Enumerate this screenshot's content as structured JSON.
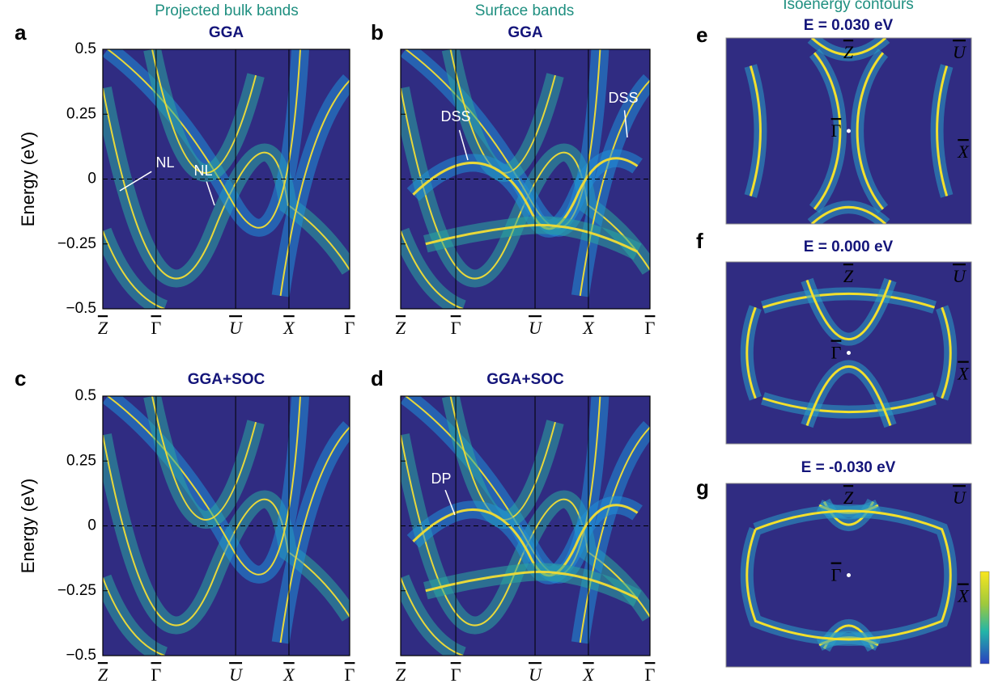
{
  "column_headers": [
    "Projected bulk bands",
    "Surface bands",
    "Isoenergy contours"
  ],
  "y_axis": {
    "label": "Energy (eV)",
    "ylim": [
      -0.5,
      0.5
    ],
    "ticks": [
      0.5,
      0.25,
      0,
      {
        "value": -0.25,
        "label": "−0.25"
      },
      {
        "value": -0.5,
        "label": "−0.5"
      }
    ]
  },
  "k_path": [
    "Z",
    "Γ",
    "U",
    "X",
    "Γ"
  ],
  "band_panels": [
    {
      "label": "a",
      "title": "GGA",
      "annotations": [
        "NL",
        "NL"
      ]
    },
    {
      "label": "b",
      "title": "GGA",
      "annotations": [
        "DSS",
        "DSS"
      ]
    },
    {
      "label": "c",
      "title": "GGA+SOC"
    },
    {
      "label": "d",
      "title": "GGA+SOC",
      "annotations": [
        "DP"
      ]
    }
  ],
  "contour_panels": [
    {
      "label": "e",
      "title": "E = 0.030 eV"
    },
    {
      "label": "f",
      "title": "E = 0.000 eV"
    },
    {
      "label": "g",
      "title": "E = -0.030 eV"
    }
  ],
  "contour_points": [
    "Z",
    "U",
    "Γ",
    "X"
  ]
}
